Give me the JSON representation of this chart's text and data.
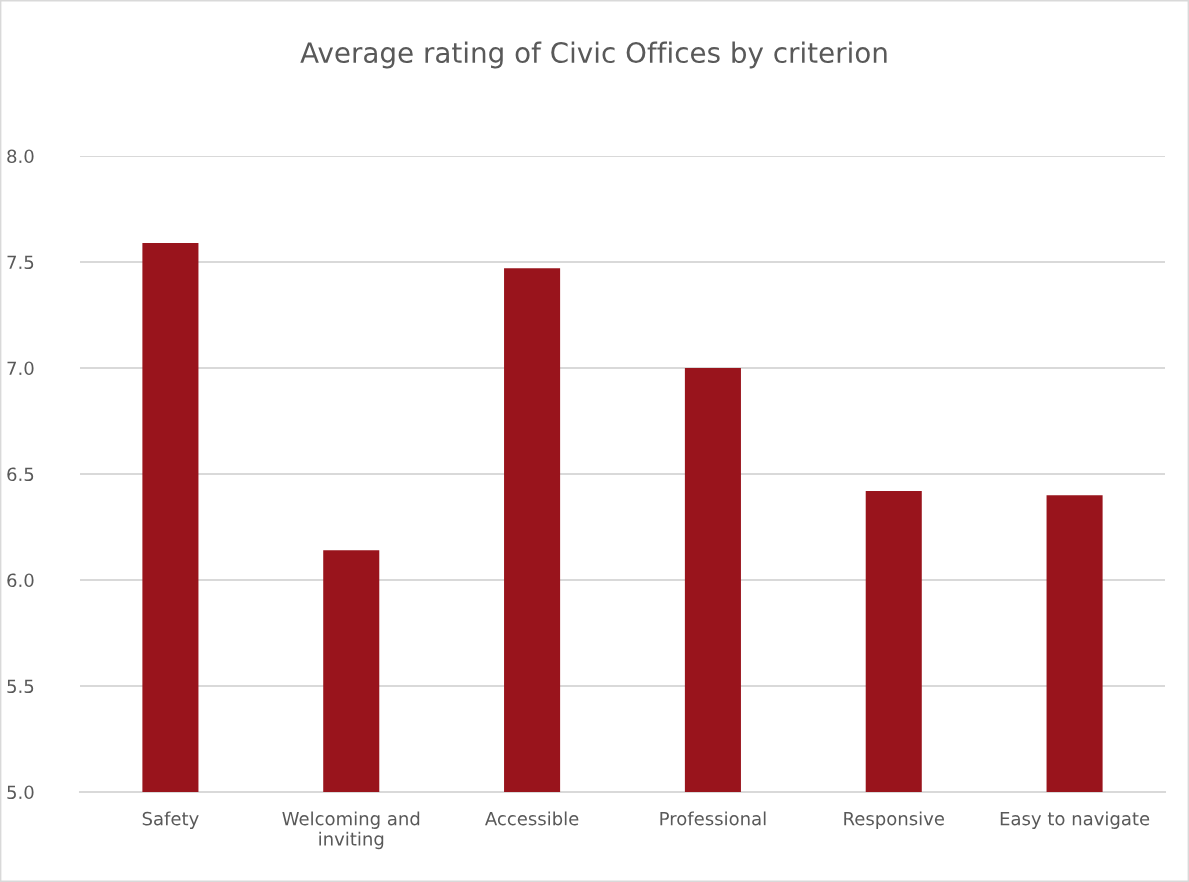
{
  "chart_data": {
    "type": "bar",
    "title": "Average rating of Civic Offices by criterion",
    "categories": [
      "Safety",
      "Welcoming and\ninviting",
      "Accessible",
      "Professional",
      "Responsive",
      "Easy to navigate"
    ],
    "values": [
      7.59,
      6.14,
      7.47,
      7.0,
      6.42,
      6.4
    ],
    "color": "#99141c",
    "ylim": [
      5.0,
      8.0
    ],
    "yticks": [
      {
        "value": 5.0,
        "label": "5.0"
      },
      {
        "value": 5.5,
        "label": "5.5"
      },
      {
        "value": 6.0,
        "label": "6.0"
      },
      {
        "value": 6.5,
        "label": "6.5"
      },
      {
        "value": 7.0,
        "label": "7.0"
      },
      {
        "value": 7.5,
        "label": "7.5"
      },
      {
        "value": 8.0,
        "label": "8.0"
      }
    ],
    "grid": "y"
  }
}
